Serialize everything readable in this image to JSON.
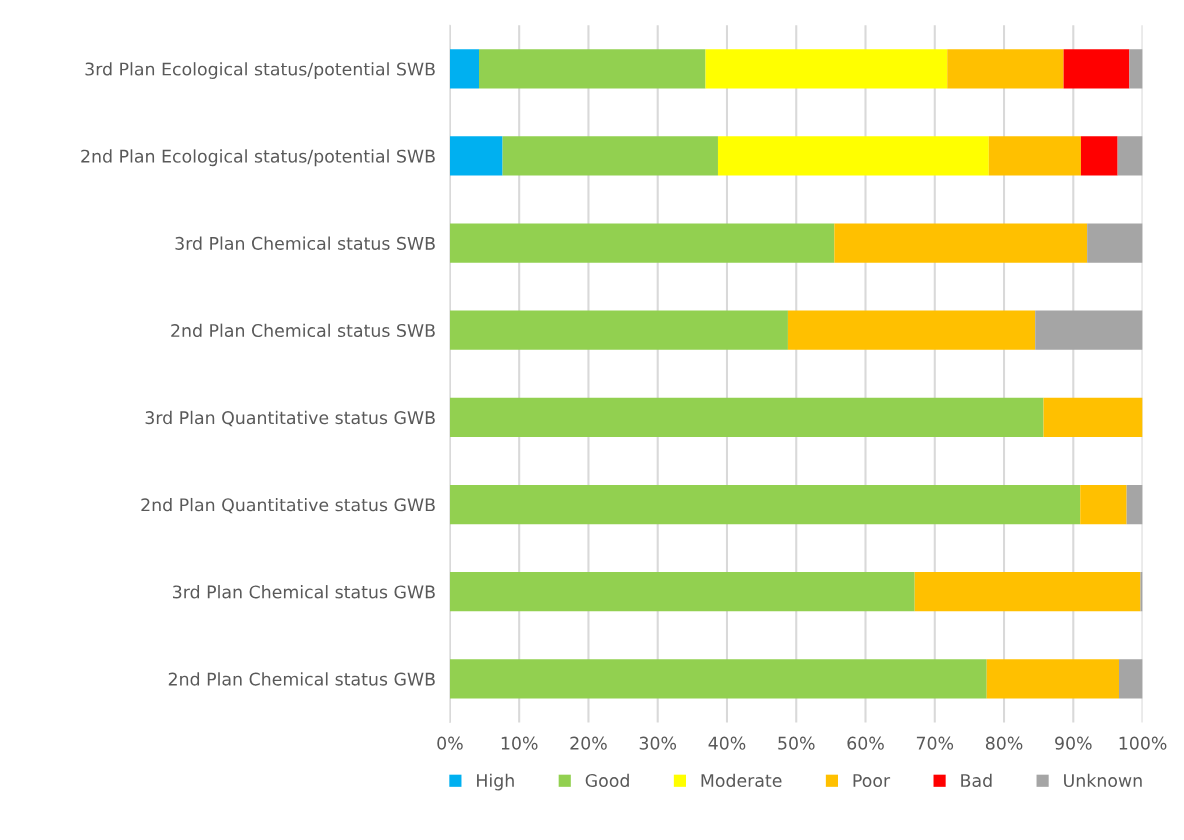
{
  "chart_data": {
    "type": "bar",
    "orientation": "horizontal",
    "stacked": true,
    "categories": [
      "3rd Plan Ecological status/potential SWB",
      "2nd Plan Ecological status/potential SWB",
      "3rd Plan Chemical status SWB",
      "2nd Plan Chemical status SWB",
      "3rd Plan Quantitative status GWB",
      "2nd Plan Quantitative status GWB",
      "3rd Plan Chemical status GWB",
      "2nd Plan Chemical status GWB"
    ],
    "series": [
      {
        "name": "High",
        "color": "#00b0f0",
        "values": [
          4.2,
          7.6,
          0,
          0,
          0,
          0,
          0,
          0
        ]
      },
      {
        "name": "Good",
        "color": "#92d050",
        "values": [
          32.7,
          31.1,
          55.5,
          48.8,
          85.7,
          91.0,
          67.1,
          77.5
        ]
      },
      {
        "name": "Moderate",
        "color": "#ffff00",
        "values": [
          34.9,
          39.1,
          0,
          0,
          0,
          0,
          0,
          0
        ]
      },
      {
        "name": "Poor",
        "color": "#ffc000",
        "values": [
          16.8,
          13.3,
          36.5,
          35.7,
          14.3,
          6.7,
          32.6,
          19.1
        ]
      },
      {
        "name": "Bad",
        "color": "#ff0000",
        "values": [
          9.5,
          5.3,
          0,
          0,
          0,
          0,
          0,
          0
        ]
      },
      {
        "name": "Unknown",
        "color": "#a5a5a5",
        "values": [
          1.9,
          3.6,
          8.0,
          15.5,
          0,
          2.3,
          0.3,
          3.4
        ]
      }
    ],
    "xlim": [
      0,
      100
    ],
    "xticks": [
      {
        "value": 0,
        "label": "0%"
      },
      {
        "value": 10,
        "label": "10%"
      },
      {
        "value": 20,
        "label": "20%"
      },
      {
        "value": 30,
        "label": "30%"
      },
      {
        "value": 40,
        "label": "40%"
      },
      {
        "value": 50,
        "label": "50%"
      },
      {
        "value": 60,
        "label": "60%"
      },
      {
        "value": 70,
        "label": "70%"
      },
      {
        "value": 80,
        "label": "80%"
      },
      {
        "value": 90,
        "label": "90%"
      },
      {
        "value": 100,
        "label": "100%"
      }
    ],
    "grid": "x",
    "legend": "bottom"
  }
}
